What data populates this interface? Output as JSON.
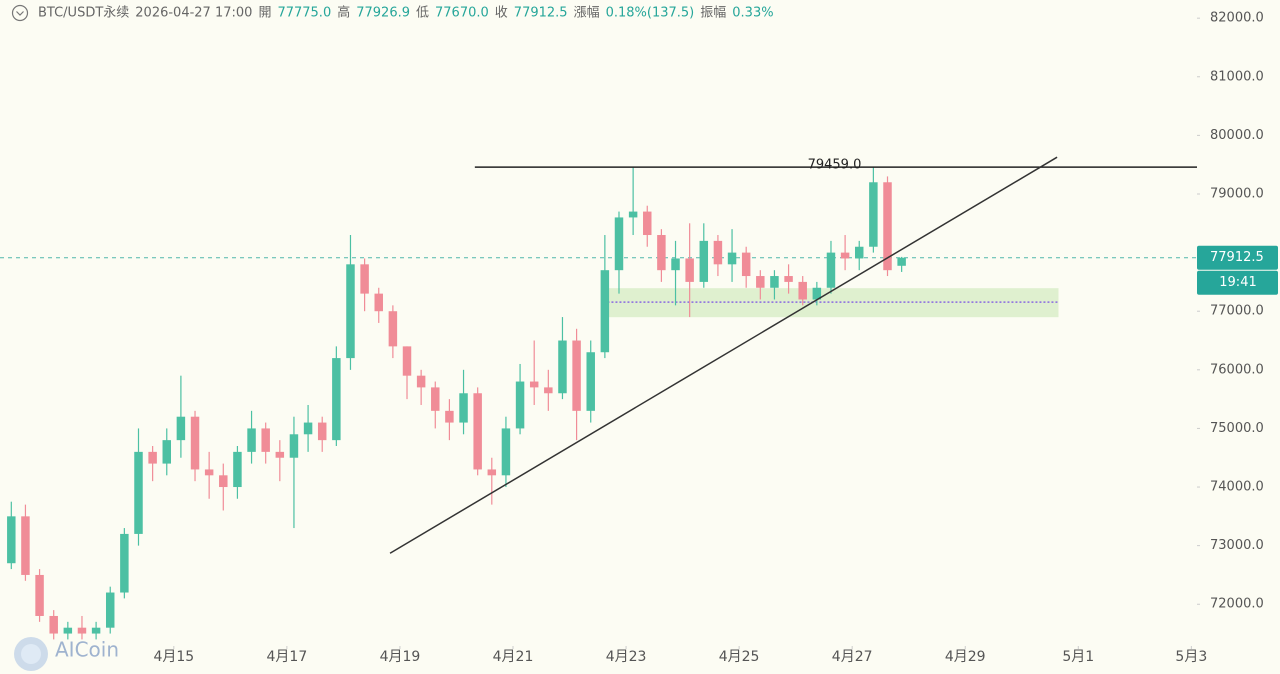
{
  "header": {
    "symbol": "BTC/USDT永续",
    "time": "2026-04-27 17:00",
    "fields": [
      {
        "label": "開",
        "value": "77775.0"
      },
      {
        "label": "高",
        "value": "77926.9"
      },
      {
        "label": "低",
        "value": "77670.0"
      },
      {
        "label": "收",
        "value": "77912.5"
      },
      {
        "label": "漲幅",
        "value": "0.18%(137.5)"
      },
      {
        "label": "振幅",
        "value": "0.33%"
      }
    ]
  },
  "chart_data": {
    "type": "candlestick",
    "categories": [
      null,
      null,
      null,
      null,
      null,
      null,
      null,
      null,
      null,
      null,
      null,
      null,
      null,
      null,
      null,
      null,
      null,
      null,
      null,
      null,
      null,
      null,
      null,
      null,
      null,
      null,
      null,
      null,
      null,
      null,
      null,
      null,
      null,
      null,
      null,
      null,
      null,
      null,
      null,
      null,
      null,
      null,
      null,
      null,
      null,
      null,
      null,
      null,
      null,
      null,
      null,
      null,
      null,
      null,
      null,
      null,
      null,
      null,
      null,
      null,
      null,
      null,
      null,
      null
    ],
    "open": [
      72700,
      73500,
      72500,
      71800,
      71500,
      71600,
      71500,
      71600,
      72200,
      73200,
      74600,
      74400,
      74800,
      75200,
      74300,
      74200,
      74000,
      74600,
      75000,
      74600,
      74500,
      74900,
      75100,
      74800,
      76200,
      77800,
      77300,
      77000,
      76400,
      75900,
      75700,
      75300,
      75100,
      75600,
      74300,
      74200,
      75000,
      75800,
      75700,
      75600,
      76500,
      75300,
      76300,
      77700,
      78600,
      78700,
      78300,
      77700,
      77900,
      77500,
      78200,
      77800,
      78000,
      77600,
      77400,
      77600,
      77500,
      77200,
      77400,
      78000,
      77900,
      78100,
      79200,
      77775.0
    ],
    "high": [
      73750,
      73700,
      72600,
      71900,
      71700,
      71800,
      71700,
      72300,
      73300,
      75000,
      74700,
      75000,
      75900,
      75300,
      74600,
      74400,
      74700,
      75300,
      75100,
      74800,
      75200,
      75400,
      75200,
      76400,
      78300,
      77900,
      77400,
      77100,
      76400,
      76000,
      75800,
      75500,
      76000,
      75700,
      74500,
      75200,
      76100,
      76500,
      76000,
      76900,
      76700,
      76500,
      78300,
      78700,
      79450,
      78800,
      78400,
      78200,
      78500,
      78500,
      78300,
      78400,
      78100,
      77700,
      77700,
      77800,
      77600,
      77500,
      78200,
      78300,
      78200,
      79459,
      79300,
      77926.9
    ],
    "low": [
      72600,
      72400,
      71700,
      71400,
      71400,
      71400,
      71400,
      71500,
      72100,
      73000,
      74100,
      74200,
      74500,
      74100,
      73800,
      73600,
      73800,
      74400,
      74400,
      74100,
      73300,
      74600,
      74600,
      74700,
      76000,
      77000,
      76800,
      76200,
      75500,
      75400,
      75000,
      74800,
      74900,
      74200,
      73700,
      74000,
      74900,
      75400,
      75300,
      75500,
      74800,
      75100,
      76200,
      77300,
      78300,
      78100,
      77500,
      77100,
      76900,
      77400,
      77600,
      77500,
      77400,
      77200,
      77200,
      77300,
      77100,
      77100,
      77300,
      77700,
      77700,
      78000,
      77600,
      77670.0
    ],
    "close": [
      73500,
      72500,
      71800,
      71500,
      71600,
      71500,
      71600,
      72200,
      73200,
      74600,
      74400,
      74800,
      75200,
      74300,
      74200,
      74000,
      74600,
      75000,
      74600,
      74500,
      74900,
      75100,
      74800,
      76200,
      77800,
      77300,
      77000,
      76400,
      75900,
      75700,
      75300,
      75100,
      75600,
      74300,
      74200,
      75000,
      75800,
      75700,
      75600,
      76500,
      75300,
      76300,
      77700,
      78600,
      78700,
      78300,
      77700,
      77900,
      77500,
      78200,
      77800,
      78000,
      77600,
      77400,
      77600,
      77500,
      77200,
      77400,
      78000,
      77900,
      78100,
      79200,
      77700,
      77912.5
    ],
    "up_color": "#4cc0a3",
    "down_color": "#f08c97",
    "xlim": [
      -0.3,
      84.4
    ],
    "xticks": [
      {
        "value": 12,
        "label": "4月15"
      },
      {
        "value": 20,
        "label": "4月17"
      },
      {
        "value": 28,
        "label": "4月19"
      },
      {
        "value": 36,
        "label": "4月21"
      },
      {
        "value": 44,
        "label": "4月23"
      },
      {
        "value": 52,
        "label": "4月25"
      },
      {
        "value": 60,
        "label": "4月27"
      },
      {
        "value": 68,
        "label": "4月29"
      },
      {
        "value": 76,
        "label": "5月1"
      },
      {
        "value": 84,
        "label": "5月3"
      }
    ],
    "ylim": [
      71390,
      82310
    ],
    "yticks": [
      {
        "value": 72000,
        "label": "72000.0"
      },
      {
        "value": 73000,
        "label": "73000.0"
      },
      {
        "value": 74000,
        "label": "74000.0"
      },
      {
        "value": 75000,
        "label": "75000.0"
      },
      {
        "value": 76000,
        "label": "76000.0"
      },
      {
        "value": 77000,
        "label": "77000.0"
      },
      {
        "value": 78000,
        "label": "78000.0"
      },
      {
        "value": 79000,
        "label": "79000.0"
      },
      {
        "value": 80000,
        "label": "80000.0"
      },
      {
        "value": 81000,
        "label": "81000.0"
      },
      {
        "value": 82000,
        "label": "82000.0"
      }
    ],
    "resistance": {
      "value": 79459.0,
      "label": "79459.0",
      "x": [
        33.3,
        84.4
      ]
    },
    "trendline": {
      "x": [
        27.3,
        74.5
      ],
      "y": [
        72870,
        79628
      ]
    },
    "zone": {
      "x": [
        42.4,
        74.6
      ],
      "y": [
        76898,
        77393
      ],
      "color": "#dff0cf"
    },
    "support_line": {
      "x": [
        42.4,
        74.6
      ],
      "value": 77154,
      "color": "#8a6ae0"
    },
    "last_price": 77912.5,
    "countdown": "19:41",
    "last_color": "#26a69a",
    "watermark": "AICoin"
  }
}
